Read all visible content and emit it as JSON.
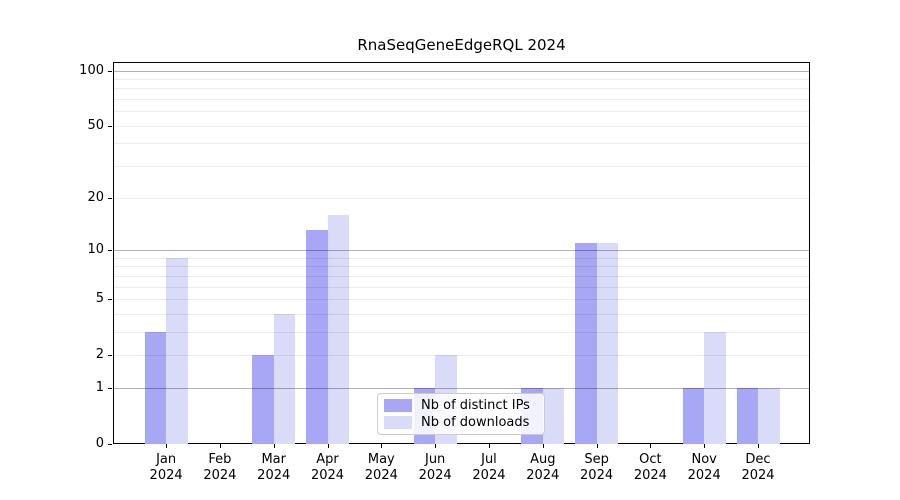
{
  "title": "RnaSeqGeneEdgeRQL 2024",
  "colors": {
    "ips": "#a7a7f5",
    "downloads": "#dadaf9",
    "axis": "#000000",
    "grid_major": "#b3b3b3",
    "grid_minor": "#ececec",
    "legend_border": "#cccccc"
  },
  "legend": {
    "position": "lower center",
    "items": [
      {
        "label": "Nb of distinct IPs",
        "color_key": "ips"
      },
      {
        "label": "Nb of downloads",
        "color_key": "downloads"
      }
    ]
  },
  "chart_data": {
    "type": "bar",
    "title": "RnaSeqGeneEdgeRQL 2024",
    "year": "2024",
    "categories": [
      "Jan",
      "Feb",
      "Mar",
      "Apr",
      "May",
      "Jun",
      "Jul",
      "Aug",
      "Sep",
      "Oct",
      "Nov",
      "Dec"
    ],
    "series": [
      {
        "name": "Nb of distinct IPs",
        "color_key": "ips",
        "values": [
          3,
          0,
          2,
          13,
          0,
          1,
          0,
          1,
          11,
          0,
          1,
          1
        ]
      },
      {
        "name": "Nb of downloads",
        "color_key": "downloads",
        "values": [
          9,
          0,
          4,
          16,
          0,
          2,
          0,
          1,
          11,
          0,
          3,
          1
        ]
      }
    ],
    "yscale": "log1p",
    "ylim": [
      0,
      110
    ],
    "yticks": [
      0,
      1,
      2,
      5,
      10,
      20,
      50,
      100
    ],
    "grid": true,
    "major_gridline_values": [
      1,
      10,
      100
    ],
    "minor_gridline_values": [
      2,
      3,
      4,
      5,
      6,
      7,
      8,
      9,
      20,
      30,
      40,
      50,
      60,
      70,
      80,
      90
    ],
    "legend_position": "lower center",
    "xlabel": "",
    "ylabel": ""
  }
}
